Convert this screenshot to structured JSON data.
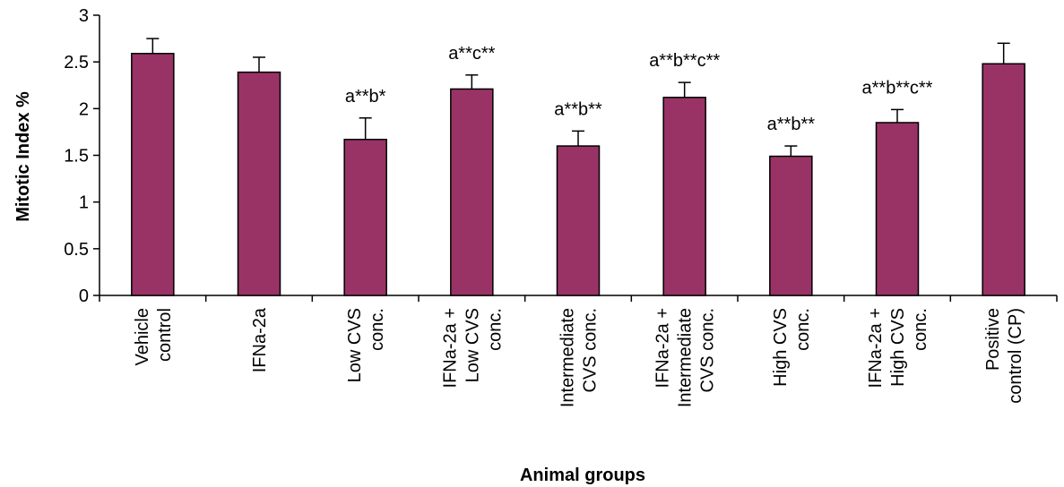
{
  "chart_data": {
    "type": "bar",
    "title": "",
    "xlabel": "Animal groups",
    "ylabel": "Mitotic Index %",
    "ylim": [
      0,
      3
    ],
    "yticks": [
      "0",
      "0.5",
      "1",
      "1.5",
      "2",
      "2.5",
      "3"
    ],
    "grid": false,
    "bar_color": "#993366",
    "categories": [
      [
        "Vehicle",
        "control"
      ],
      [
        "IFNa-2a"
      ],
      [
        "Low CVS",
        "conc."
      ],
      [
        "IFNa-2a +",
        "Low CVS",
        "conc."
      ],
      [
        "Intermediate",
        "CVS conc."
      ],
      [
        "IFNa-2a +",
        "Intermediate",
        "CVS conc."
      ],
      [
        "High CVS",
        "conc."
      ],
      [
        "IFNa-2a +",
        "High CVS",
        "conc."
      ],
      [
        "Positive",
        "control (CP)"
      ]
    ],
    "values": [
      2.59,
      2.39,
      1.67,
      2.21,
      1.6,
      2.12,
      1.49,
      1.85,
      2.48
    ],
    "errors": [
      0.16,
      0.16,
      0.23,
      0.15,
      0.16,
      0.16,
      0.11,
      0.14,
      0.22
    ],
    "annotations": [
      "",
      "",
      "a**b*",
      "a**c**",
      "a**b**",
      "a**b**c**",
      "a**b**",
      "a**b**c**",
      ""
    ]
  }
}
